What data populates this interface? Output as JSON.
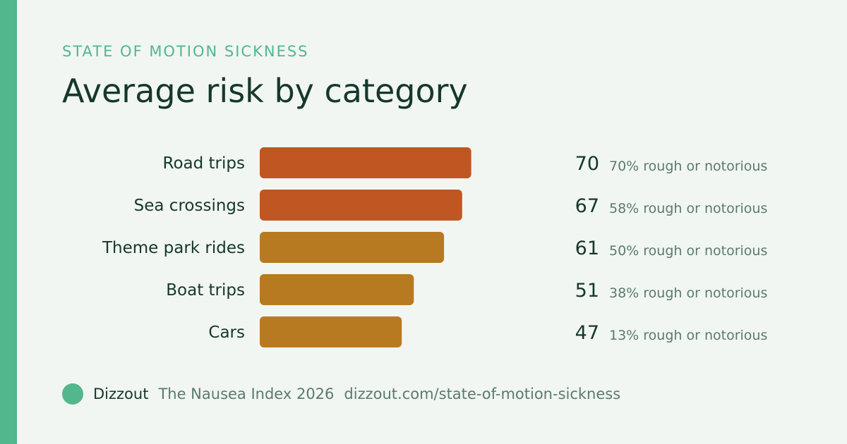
{
  "colors": {
    "accent": "#52b78a",
    "bar_high": "#c05622",
    "bar_mid": "#b87a21",
    "label": "#16372c",
    "muted": "#5b7a6f"
  },
  "header": {
    "eyebrow": "STATE OF MOTION SICKNESS",
    "title": "Average risk by category"
  },
  "chart_data": {
    "type": "bar",
    "orientation": "horizontal",
    "title": "Average risk by category",
    "categories": [
      "Road trips",
      "Sea crossings",
      "Theme park rides",
      "Boat trips",
      "Cars"
    ],
    "values": [
      70,
      67,
      61,
      51,
      47
    ],
    "secondary_labels": [
      "70% rough or notorious",
      "58% rough or notorious",
      "50% rough or notorious",
      "38% rough or notorious",
      "13% rough or notorious"
    ],
    "bar_color_groups": [
      "high",
      "high",
      "mid",
      "mid",
      "mid"
    ],
    "xlim": [
      0,
      100
    ],
    "grid": false,
    "legend": "none"
  },
  "footer": {
    "brand": "Dizzout",
    "report": "The Nausea Index 2026",
    "url": "dizzout.com/state-of-motion-sickness"
  }
}
